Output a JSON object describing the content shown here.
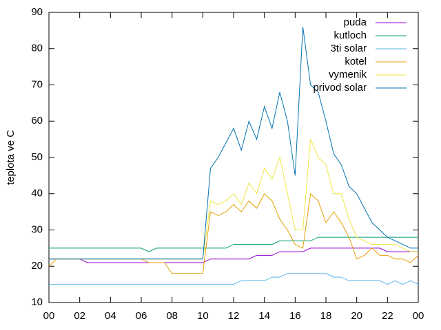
{
  "chart_data": {
    "type": "line",
    "y_label": "teplota ve C",
    "legend": "top-right",
    "x": [
      0,
      0.5,
      1,
      1.5,
      2,
      2.5,
      3,
      3.5,
      4,
      4.5,
      5,
      5.5,
      6,
      6.5,
      7,
      7.5,
      8,
      8.5,
      9,
      9.5,
      10,
      10.5,
      11,
      11.5,
      12,
      12.5,
      13,
      13.5,
      14,
      14.5,
      15,
      15.5,
      16,
      16.5,
      17,
      17.5,
      18,
      18.5,
      19,
      19.5,
      20,
      20.5,
      21,
      21.5,
      22,
      22.5,
      23,
      23.5,
      24
    ],
    "xlim": [
      0,
      24
    ],
    "xticks": [
      {
        "value": 0,
        "label": "00"
      },
      {
        "value": 2,
        "label": "02"
      },
      {
        "value": 4,
        "label": "04"
      },
      {
        "value": 6,
        "label": "06"
      },
      {
        "value": 8,
        "label": "08"
      },
      {
        "value": 10,
        "label": "10"
      },
      12,
      14,
      16,
      18,
      20,
      22,
      {
        "value": 24,
        "label": "00"
      }
    ],
    "ylim": [
      10,
      90
    ],
    "yticks": [
      10,
      20,
      30,
      40,
      50,
      60,
      70,
      80,
      90
    ],
    "series": [
      {
        "name": "puda",
        "color": "#9400d3",
        "values": [
          22,
          22,
          22,
          22,
          22,
          21,
          21,
          21,
          21,
          21,
          21,
          21,
          21,
          21,
          21,
          21,
          21,
          21,
          21,
          21,
          21,
          22,
          22,
          22,
          22,
          22,
          22,
          23,
          23,
          23,
          24,
          24,
          24,
          24,
          25,
          25,
          25,
          25,
          25,
          25,
          25,
          25,
          25,
          25,
          24,
          24,
          24,
          24,
          24
        ]
      },
      {
        "name": "kutloch",
        "color": "#009e73",
        "values": [
          25,
          25,
          25,
          25,
          25,
          25,
          25,
          25,
          25,
          25,
          25,
          25,
          25,
          24,
          25,
          25,
          25,
          25,
          25,
          25,
          25,
          25,
          25,
          25,
          26,
          26,
          26,
          26,
          26,
          26,
          27,
          27,
          27,
          27,
          27,
          28,
          28,
          28,
          28,
          28,
          28,
          28,
          28,
          28,
          28,
          28,
          28,
          28,
          28
        ]
      },
      {
        "name": "3ti solar",
        "color": "#56b4e9",
        "values": [
          15,
          15,
          15,
          15,
          15,
          15,
          15,
          15,
          15,
          15,
          15,
          15,
          15,
          15,
          15,
          15,
          15,
          15,
          15,
          15,
          15,
          15,
          15,
          15,
          15,
          16,
          16,
          16,
          16,
          17,
          17,
          18,
          18,
          18,
          18,
          18,
          18,
          17,
          17,
          16,
          16,
          16,
          16,
          16,
          15,
          16,
          15,
          16,
          15
        ]
      },
      {
        "name": "kotel",
        "color": "#e69f00",
        "values": [
          20,
          22,
          22,
          22,
          22,
          22,
          22,
          22,
          22,
          22,
          22,
          22,
          22,
          21,
          21,
          21,
          18,
          18,
          18,
          18,
          18,
          35,
          34,
          35,
          37,
          35,
          38,
          36,
          40,
          38,
          33,
          30,
          26,
          25,
          40,
          38,
          32,
          35,
          32,
          28,
          22,
          23,
          25,
          23,
          23,
          22,
          22,
          21,
          23
        ]
      },
      {
        "name": "vymenik",
        "color": "#f0e442",
        "values": [
          22,
          22,
          22,
          22,
          22,
          22,
          22,
          22,
          22,
          22,
          22,
          22,
          22,
          22,
          22,
          22,
          22,
          22,
          22,
          22,
          22,
          38,
          37,
          38,
          40,
          37,
          43,
          40,
          47,
          44,
          50,
          40,
          30,
          30,
          55,
          50,
          48,
          40,
          40,
          33,
          28,
          27,
          26,
          26,
          26,
          26,
          25,
          24,
          24
        ]
      },
      {
        "name": "privod solar",
        "color": "#0072b2",
        "values": [
          22,
          22,
          22,
          22,
          22,
          22,
          22,
          22,
          22,
          22,
          22,
          22,
          22,
          22,
          22,
          22,
          22,
          22,
          22,
          22,
          22,
          47,
          50,
          54,
          58,
          52,
          60,
          55,
          64,
          58,
          68,
          60,
          45,
          86,
          70,
          68,
          60,
          51,
          48,
          42,
          40,
          36,
          32,
          30,
          28,
          27,
          26,
          25,
          25
        ]
      }
    ]
  }
}
